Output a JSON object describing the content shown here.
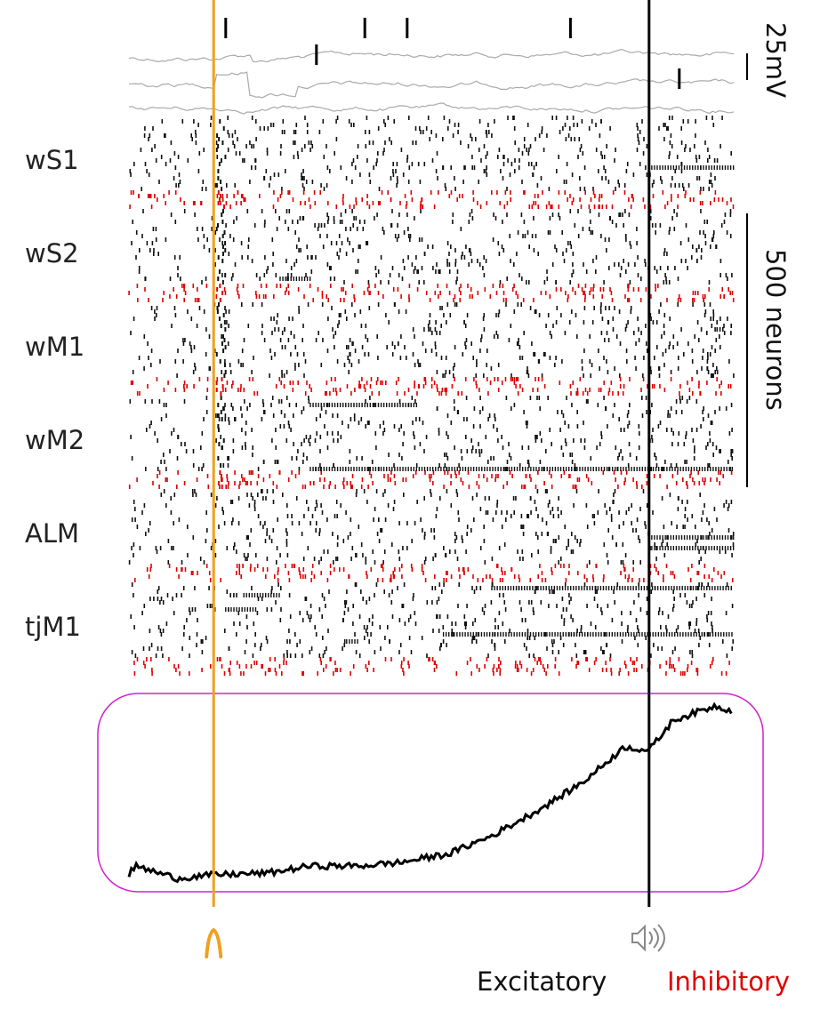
{
  "chart_data": {
    "type": "raster",
    "title": "",
    "x_range": [
      0,
      100
    ],
    "stimulus_time": 14,
    "sound_cue_time": 86,
    "areas": [
      {
        "label": "wS1",
        "sustained": [
          {
            "x0": 86,
            "x1": 100,
            "row": 14
          }
        ]
      },
      {
        "label": "wS2",
        "sustained": [
          {
            "x0": 25,
            "x1": 30,
            "row": 19
          }
        ]
      },
      {
        "label": "wM1",
        "sustained": []
      },
      {
        "label": "wM2",
        "sustained": [
          {
            "x0": 30,
            "x1": 100,
            "row": 20
          },
          {
            "x0": 30,
            "x1": 48,
            "row": 2
          }
        ]
      },
      {
        "label": "ALM",
        "sustained": [
          {
            "x0": 86,
            "x1": 100,
            "row": 13
          },
          {
            "x0": 86,
            "x1": 100,
            "row": 16
          }
        ]
      },
      {
        "label": "tjM1",
        "sustained": [
          {
            "x0": 19,
            "x1": 25,
            "row": 3
          },
          {
            "x0": 16,
            "x1": 21,
            "row": 7
          },
          {
            "x0": 60,
            "x1": 100,
            "row": 1
          },
          {
            "x0": 52,
            "x1": 100,
            "row": 14
          },
          {
            "x0": 36,
            "x1": 38,
            "row": 16
          }
        ]
      }
    ],
    "vm_traces": [
      {
        "spikes": [
          16,
          39,
          46,
          73
        ]
      },
      {
        "spikes": [
          31
        ]
      },
      {
        "spikes": [
          91
        ]
      }
    ],
    "population_trace": {
      "x": [
        0,
        1,
        8,
        14,
        23,
        30,
        38,
        45,
        53,
        60,
        68,
        75,
        82,
        86,
        90,
        97,
        100
      ],
      "y": [
        0.03,
        0.08,
        0.01,
        0.03,
        0.04,
        0.08,
        0.08,
        0.1,
        0.15,
        0.25,
        0.4,
        0.55,
        0.75,
        0.73,
        0.9,
        0.98,
        0.95
      ]
    },
    "scale_bars": {
      "voltage": "25mV",
      "neurons": "500 neurons"
    },
    "legend": [
      {
        "label": "Excitatory",
        "color": "#111111"
      },
      {
        "label": "Inhibitory",
        "color": "#e00000"
      }
    ],
    "colors": {
      "stimulus": "#f0a020",
      "cue": "#000000",
      "box": "#d020d0",
      "vm": "#aaaaaa"
    }
  }
}
